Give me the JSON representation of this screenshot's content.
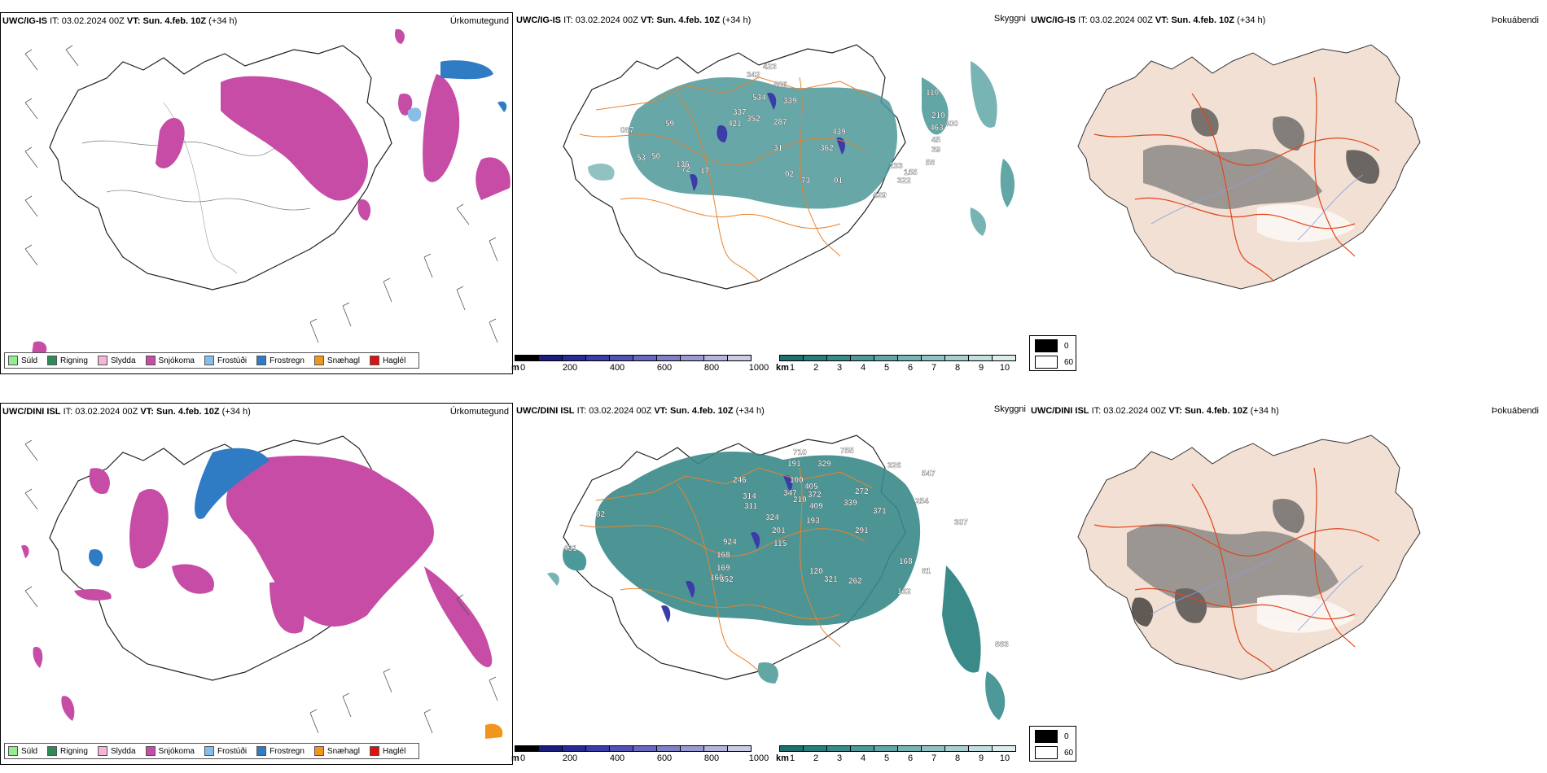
{
  "rows": [
    {
      "model": "UWC/IG-IS",
      "it_label": "IT:",
      "it_value": "03.02.2024 00Z",
      "vt_label": "VT:",
      "vt_value": "Sun. 4.feb. 10Z",
      "lead": "(+34 h)",
      "cloud_values": [
        "342",
        "423",
        "486",
        "534",
        "337",
        "421",
        "352",
        "339",
        "287",
        "087",
        "59",
        "439",
        "362",
        "31",
        "53",
        "50",
        "72",
        "17",
        "02",
        "73",
        "01",
        "233",
        "322",
        "155",
        "429",
        "110",
        "210",
        "463",
        "400",
        "45",
        "39",
        "136",
        "58"
      ]
    },
    {
      "model": "UWC/DINI ISL",
      "it_label": "IT:",
      "it_value": "03.02.2024 00Z",
      "vt_label": "VT:",
      "vt_value": "Sun. 4.feb. 10Z",
      "lead": "(+34 h)",
      "cloud_values": [
        "710",
        "755",
        "191",
        "329",
        "246",
        "100",
        "405",
        "272",
        "326",
        "547",
        "347",
        "372",
        "210",
        "314",
        "311",
        "409",
        "339",
        "371",
        "254",
        "324",
        "193",
        "201",
        "82",
        "924",
        "115",
        "291",
        "307",
        "431",
        "169",
        "168",
        "120",
        "321",
        "262",
        "168",
        "81",
        "132",
        "352",
        "166",
        "883"
      ]
    }
  ],
  "panel_titles": {
    "precip": "Úrkomutegund",
    "cloud": "Skyggni",
    "fog": "Þokuábendi"
  },
  "precip_legend": [
    {
      "label": "Súld",
      "color": "#90ee90"
    },
    {
      "label": "Rigning",
      "color": "#2e8b57"
    },
    {
      "label": "Slydda",
      "color": "#f4b6d8"
    },
    {
      "label": "Snjókoma",
      "color": "#c64ca5"
    },
    {
      "label": "Frostúði",
      "color": "#87bde8"
    },
    {
      "label": "Frostregn",
      "color": "#2f7cc4"
    },
    {
      "label": "Snæhagl",
      "color": "#f0961e"
    },
    {
      "label": "Haglél",
      "color": "#dd1111"
    }
  ],
  "height_bar": {
    "unit": "m",
    "ticks": [
      "0",
      "200",
      "400",
      "600",
      "800",
      "1000"
    ],
    "colors": [
      "#000000",
      "#1c1c7c",
      "#2a2a96",
      "#3c3ca8",
      "#5252b4",
      "#6868be",
      "#8080c8",
      "#9a9ad2",
      "#b4b4dc",
      "#cbcbe6"
    ]
  },
  "vis_bar": {
    "unit": "km",
    "ticks": [
      "1",
      "2",
      "3",
      "4",
      "5",
      "6",
      "7",
      "8",
      "9",
      "10"
    ],
    "colors": [
      "#1f6f6f",
      "#2a7d7d",
      "#3a8a8a",
      "#4d9898",
      "#62a6a6",
      "#79b4b4",
      "#90c2c2",
      "#a9d0d0",
      "#c2dede",
      "#dcecec"
    ]
  },
  "fog_legend": [
    {
      "label": "0",
      "color": "#000000"
    },
    {
      "label": "60",
      "color": "#ffffff"
    }
  ]
}
